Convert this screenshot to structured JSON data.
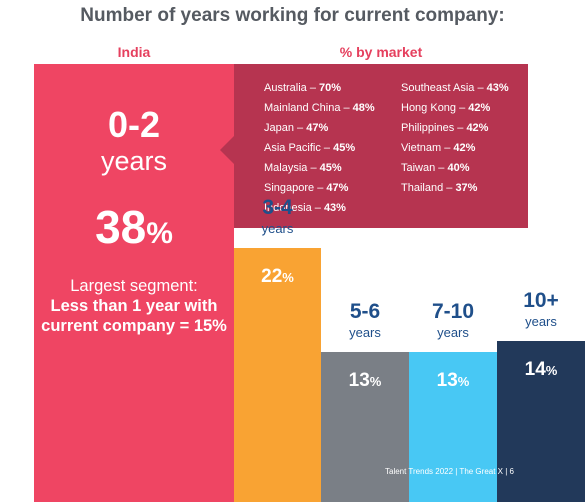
{
  "title": "Number of years working for current company:",
  "india_label": "India",
  "market_label": "% by market",
  "main": {
    "range": "0-2",
    "years": "years",
    "pct": "38",
    "pct_sign": "%",
    "note_line1": "Largest segment:",
    "note_line2": "Less than 1 year with current company = 15%"
  },
  "markets": [
    {
      "name": "Australia",
      "value": "70%"
    },
    {
      "name": "Mainland China",
      "value": "48%"
    },
    {
      "name": "Japan",
      "value": "47%"
    },
    {
      "name": "Asia Pacific",
      "value": "45%"
    },
    {
      "name": "Malaysia",
      "value": "45%"
    },
    {
      "name": "Singapore",
      "value": "47%"
    },
    {
      "name": "Indonesia",
      "value": "43%"
    },
    {
      "name": "Southeast Asia",
      "value": "43%"
    },
    {
      "name": "Hong Kong",
      "value": "42%"
    },
    {
      "name": "Philippines",
      "value": "42%"
    },
    {
      "name": "Vietnam",
      "value": "42%"
    },
    {
      "name": "Taiwan",
      "value": "40%"
    },
    {
      "name": "Thailand",
      "value": "37%"
    }
  ],
  "footer": "Talent Trends 2022  |  The Great X  |  6",
  "colors": {
    "main_bar": "#ef4563",
    "market_box": "#b63450",
    "bar_3_4": "#f9a333",
    "bar_5_6": "#7a7f86",
    "bar_7_10": "#48c8f4",
    "bar_10_plus": "#22395a",
    "category_text": "#1f4f8a"
  },
  "chart_data": {
    "type": "bar",
    "title": "Number of years working for current company:",
    "categories": [
      "0-2 years",
      "3-4 years",
      "5-6 years",
      "7-10 years",
      "10+ years"
    ],
    "category_ranges": [
      "0-2",
      "3-4",
      "5-6",
      "7-10",
      "10+"
    ],
    "category_units": [
      "years",
      "years",
      "years",
      "years",
      "years"
    ],
    "values": [
      38,
      22,
      13,
      13,
      14
    ],
    "value_suffix": "%",
    "ylim": [
      0,
      38
    ],
    "grid": false,
    "legend": "none"
  }
}
